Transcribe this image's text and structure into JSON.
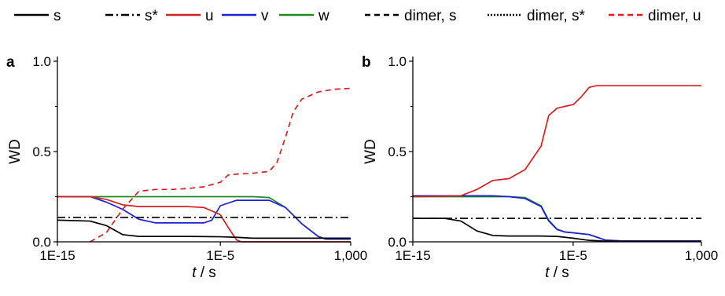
{
  "colors": {
    "s": "#000000",
    "u": "#d42020",
    "v": "#1f1fd6",
    "w": "#1e8a1e",
    "axis": "#000000"
  },
  "legend": [
    {
      "key": "s",
      "label": "s",
      "color": "#000000",
      "dash": "solid"
    },
    {
      "key": "s_star",
      "label": "s*",
      "color": "#000000",
      "dash": "dashdot"
    },
    {
      "key": "u",
      "label": "u",
      "color": "#d42020",
      "dash": "solid"
    },
    {
      "key": "v",
      "label": "v",
      "color": "#1f1fd6",
      "dash": "solid"
    },
    {
      "key": "w",
      "label": "w",
      "color": "#1e8a1e",
      "dash": "solid"
    },
    {
      "key": "dimer_s",
      "label": "dimer, s",
      "color": "#000000",
      "dash": "dashed"
    },
    {
      "key": "dimer_s_star",
      "label": "dimer, s*",
      "color": "#000000",
      "dash": "dotted"
    },
    {
      "key": "dimer_u",
      "label": "dimer, u",
      "color": "#d42020",
      "dash": "dashed"
    }
  ],
  "chart_data": [
    {
      "type": "line",
      "panel_label": "a",
      "xlabel_italic": "t",
      "xlabel_rest": " / s",
      "ylabel": "WD",
      "xscale": "log",
      "xlim": [
        1e-15,
        1000
      ],
      "ylim": [
        0,
        1
      ],
      "xticks": [
        1e-15,
        1e-05,
        1000
      ],
      "xtick_labels": [
        "1E-15",
        "1E-5",
        "1,000"
      ],
      "yticks": [
        0,
        0.5,
        1
      ],
      "ytick_labels": [
        "0.0",
        "0.5",
        "1.0"
      ],
      "grid": false,
      "series": [
        {
          "key": "w",
          "color": "#1e8a1e",
          "dash": "solid",
          "x": [
            1e-15,
            1e-12,
            1e-09,
            1e-06,
            0.001,
            0.01,
            0.1,
            1.0,
            10.0,
            30.0,
            100.0,
            1000.0
          ],
          "y": [
            0.25,
            0.25,
            0.25,
            0.25,
            0.25,
            0.245,
            0.19,
            0.1,
            0.03,
            0.015,
            0.015,
            0.015
          ]
        },
        {
          "key": "v",
          "color": "#1f1fd6",
          "dash": "solid",
          "x": [
            1e-15,
            1e-13,
            1e-12,
            1e-11,
            1e-10,
            1e-09,
            1e-08,
            1e-07,
            1e-06,
            3e-06,
            1e-05,
            0.0001,
            0.001,
            0.01,
            0.1,
            1.0,
            10.0,
            30.0,
            100.0,
            1000.0
          ],
          "y": [
            0.25,
            0.25,
            0.22,
            0.18,
            0.125,
            0.105,
            0.105,
            0.105,
            0.105,
            0.12,
            0.2,
            0.23,
            0.23,
            0.23,
            0.19,
            0.1,
            0.03,
            0.015,
            0.015,
            0.015
          ]
        },
        {
          "key": "u",
          "color": "#d42020",
          "dash": "solid",
          "x": [
            1e-15,
            1e-13,
            1e-12,
            1e-11,
            1e-10,
            1e-09,
            1e-08,
            1e-07,
            1e-06,
            1e-05,
            3e-05,
            0.0001,
            0.0002,
            0.001,
            1000.0
          ],
          "y": [
            0.25,
            0.25,
            0.235,
            0.205,
            0.195,
            0.195,
            0.195,
            0.195,
            0.19,
            0.15,
            0.08,
            0.01,
            0.0,
            0.0,
            0.0
          ]
        },
        {
          "key": "s",
          "color": "#000000",
          "dash": "solid",
          "x": [
            1e-15,
            1e-13,
            1e-12,
            1e-11,
            1e-10,
            1e-09,
            1e-07,
            1e-05,
            0.0001,
            0.001,
            0.01,
            0.1,
            10.0,
            1000.0
          ],
          "y": [
            0.12,
            0.115,
            0.09,
            0.04,
            0.03,
            0.03,
            0.03,
            0.028,
            0.025,
            0.02,
            0.02,
            0.02,
            0.02,
            0.02
          ]
        },
        {
          "key": "s_star",
          "color": "#000000",
          "dash": "dashdot",
          "x": [
            1e-15,
            1000.0
          ],
          "y": [
            0.135,
            0.135
          ]
        },
        {
          "key": "dimer_u",
          "color": "#d42020",
          "dash": "dashed",
          "x": [
            1e-13,
            1e-12,
            1e-11,
            1e-10,
            1e-09,
            1e-08,
            1e-07,
            1e-06,
            1e-05,
            3e-05,
            0.0001,
            0.001,
            0.01,
            0.03,
            0.1,
            0.3,
            1.0,
            10.0,
            100.0,
            1000.0
          ],
          "y": [
            0.0,
            0.05,
            0.18,
            0.28,
            0.29,
            0.29,
            0.295,
            0.305,
            0.33,
            0.37,
            0.375,
            0.38,
            0.39,
            0.44,
            0.58,
            0.72,
            0.79,
            0.83,
            0.845,
            0.85
          ]
        }
      ]
    },
    {
      "type": "line",
      "panel_label": "b",
      "xlabel_italic": "t",
      "xlabel_rest": " / s",
      "ylabel": "WD",
      "xscale": "log",
      "xlim": [
        1e-15,
        1000
      ],
      "ylim": [
        0,
        1
      ],
      "xticks": [
        1e-15,
        1e-05,
        1000
      ],
      "xtick_labels": [
        "1E-15",
        "1E-5",
        "1,000"
      ],
      "yticks": [
        0,
        0.5,
        1
      ],
      "ytick_labels": [
        "0.0",
        "0.5",
        "1.0"
      ],
      "grid": false,
      "series": [
        {
          "key": "s_star",
          "color": "#000000",
          "dash": "dashdot",
          "x": [
            1e-15,
            1000.0
          ],
          "y": [
            0.13,
            0.13
          ]
        },
        {
          "key": "w",
          "color": "#1e8a1e",
          "dash": "solid",
          "x": [
            1e-15,
            1e-12,
            1e-10,
            1e-09,
            1e-08,
            1e-07,
            3e-07,
            1e-06,
            3e-06,
            1e-05,
            0.0001,
            0.001,
            0.01,
            1.0,
            1000.0
          ],
          "y": [
            0.25,
            0.25,
            0.25,
            0.25,
            0.245,
            0.2,
            0.12,
            0.07,
            0.055,
            0.05,
            0.04,
            0.01,
            0.005,
            0.005,
            0.005
          ]
        },
        {
          "key": "v",
          "color": "#1f1fd6",
          "dash": "solid",
          "x": [
            1e-15,
            1e-12,
            1e-10,
            1e-09,
            1e-08,
            1e-07,
            3e-07,
            1e-06,
            3e-06,
            1e-05,
            0.0001,
            0.001,
            0.01,
            1.0,
            1000.0
          ],
          "y": [
            0.255,
            0.255,
            0.255,
            0.25,
            0.24,
            0.195,
            0.115,
            0.068,
            0.054,
            0.05,
            0.04,
            0.01,
            0.005,
            0.005,
            0.005
          ]
        },
        {
          "key": "u",
          "color": "#d42020",
          "dash": "solid",
          "x": [
            1e-15,
            1e-12,
            1e-11,
            1e-10,
            1e-09,
            1e-08,
            1e-07,
            3e-07,
            1e-06,
            3e-06,
            1e-05,
            3e-05,
            0.0001,
            0.0003,
            0.001,
            0.01,
            1.0,
            1000.0
          ],
          "y": [
            0.25,
            0.255,
            0.29,
            0.34,
            0.35,
            0.4,
            0.53,
            0.7,
            0.74,
            0.75,
            0.76,
            0.8,
            0.855,
            0.865,
            0.865,
            0.865,
            0.865,
            0.865
          ]
        },
        {
          "key": "s",
          "color": "#000000",
          "dash": "solid",
          "x": [
            1e-15,
            1e-13,
            1e-12,
            1e-11,
            1e-10,
            1e-09,
            1e-07,
            1e-06,
            1e-05,
            0.0001,
            0.001,
            0.01,
            1.0,
            1000.0
          ],
          "y": [
            0.13,
            0.13,
            0.115,
            0.06,
            0.035,
            0.032,
            0.032,
            0.03,
            0.02,
            0.008,
            0.004,
            0.003,
            0.003,
            0.003
          ]
        }
      ]
    }
  ]
}
